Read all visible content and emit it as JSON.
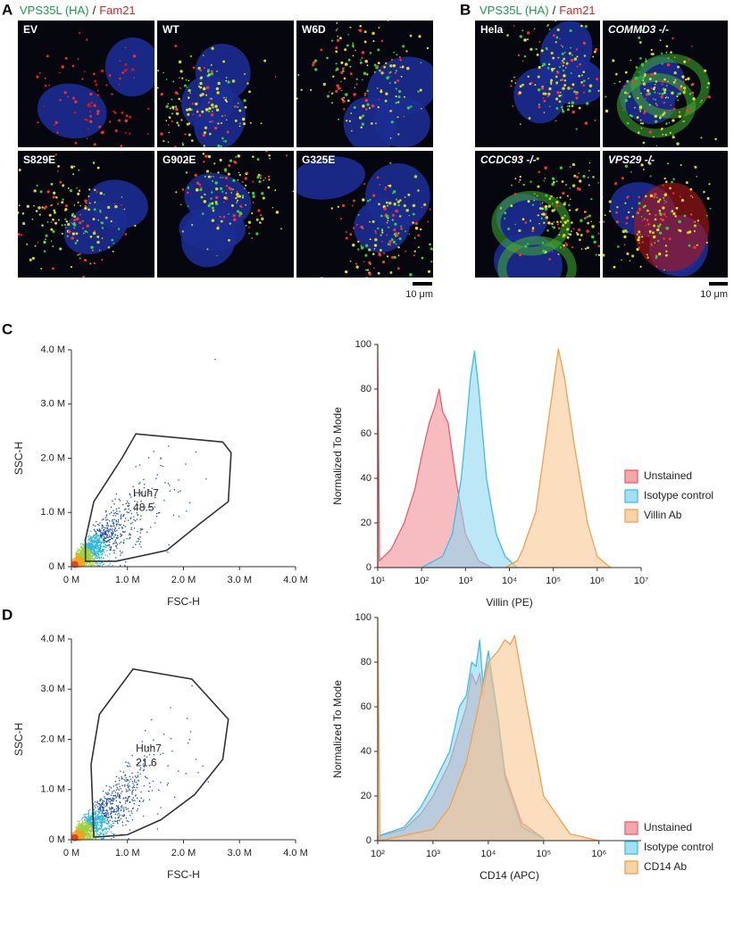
{
  "panel_a": {
    "letter": "A",
    "stain_green": "VPS35L (HA)",
    "separator": "/",
    "stain_red": "Fam21",
    "images": [
      "EV",
      "WT",
      "W6D",
      "S829E",
      "G902E",
      "G325E"
    ],
    "scale_bar": "10 μm"
  },
  "panel_b": {
    "letter": "B",
    "stain_green": "VPS35L (HA)",
    "separator": "/",
    "stain_red": "Fam21",
    "images": [
      "Hela",
      "COMMD3 -/-",
      "CCDC93 -/-",
      "VPS29 -/-"
    ],
    "scale_bar": "10 μm"
  },
  "chart_data": [
    {
      "type": "density",
      "panel": "C",
      "xlabel": "FSC-H",
      "ylabel": "SSC-H",
      "xlim": [
        0,
        4
      ],
      "ylim": [
        0,
        4
      ],
      "xticks": [
        {
          "value": 0,
          "label": "0 M"
        },
        {
          "value": 1,
          "label": "1.0 M"
        },
        {
          "value": 2,
          "label": "2.0 M"
        },
        {
          "value": 3,
          "label": "3.0 M"
        },
        {
          "value": 4,
          "label": "4.0 M"
        }
      ],
      "yticks": [
        {
          "value": 0,
          "label": "0 M"
        },
        {
          "value": 1,
          "label": "1.0 M"
        },
        {
          "value": 2,
          "label": "2.0 M"
        },
        {
          "value": 3,
          "label": "3.0 M"
        },
        {
          "value": 4,
          "label": "4.0 M"
        }
      ],
      "gate": {
        "label": "Huh7",
        "value": 48.5,
        "label_x": 1.1,
        "label_y": 1.2,
        "x": [
          0.25,
          0.25,
          0.4,
          0.9,
          1.15,
          2.7,
          2.85,
          2.8,
          2.3,
          1.7,
          0.8
        ],
        "y": [
          0.1,
          0.5,
          1.2,
          2.0,
          2.45,
          2.3,
          2.1,
          1.2,
          0.8,
          0.3,
          0.1
        ]
      }
    },
    {
      "type": "histogram",
      "xlabel": "Villin (PE)",
      "ylabel": "Normalized To Mode",
      "log_x": true,
      "xlim": [
        10,
        10000000
      ],
      "ylim": [
        0,
        100
      ],
      "xticks": [
        {
          "value": 10,
          "label": "10¹"
        },
        {
          "value": 100,
          "label": "10²"
        },
        {
          "value": 1000,
          "label": "10³"
        },
        {
          "value": 10000,
          "label": "10⁴"
        },
        {
          "value": 100000,
          "label": "10⁵"
        },
        {
          "value": 1000000,
          "label": "10⁶"
        },
        {
          "value": 10000000,
          "label": "10⁷"
        }
      ],
      "yticks": [
        0,
        20,
        40,
        60,
        80,
        100
      ],
      "series": [
        {
          "name": "Unstained",
          "color": "#e8606a",
          "fill": "#f29096",
          "x": [
            10,
            11,
            20,
            40,
            70,
            100,
            150,
            200,
            250,
            300,
            400,
            600,
            1000,
            2000,
            4000
          ],
          "values": [
            100,
            3,
            8,
            20,
            35,
            50,
            65,
            72,
            80,
            70,
            65,
            40,
            15,
            3,
            0
          ]
        },
        {
          "name": "Isotype control",
          "color": "#3fbde8",
          "fill": "#8ed7f2",
          "x": [
            100,
            300,
            500,
            800,
            1000,
            1300,
            1600,
            2000,
            3000,
            5000,
            8000,
            15000
          ],
          "values": [
            0,
            5,
            15,
            40,
            60,
            85,
            97,
            80,
            40,
            15,
            5,
            0
          ]
        },
        {
          "name": "Villin Ab",
          "color": "#f0a050",
          "fill": "#f8c892",
          "x": [
            8000,
            15000,
            20000,
            40000,
            60000,
            90000,
            130000,
            180000,
            300000,
            600000,
            1000000,
            2000000
          ],
          "values": [
            0,
            3,
            8,
            25,
            50,
            75,
            98,
            85,
            55,
            20,
            5,
            0
          ]
        }
      ]
    },
    {
      "type": "density",
      "panel": "D",
      "xlabel": "FSC-H",
      "ylabel": "SSC-H",
      "xlim": [
        0,
        4
      ],
      "ylim": [
        0,
        4
      ],
      "xticks": [
        {
          "value": 0,
          "label": "0 M"
        },
        {
          "value": 1,
          "label": "1.0 M"
        },
        {
          "value": 2,
          "label": "2.0 M"
        },
        {
          "value": 3,
          "label": "3.0 M"
        },
        {
          "value": 4,
          "label": "4.0 M"
        }
      ],
      "yticks": [
        {
          "value": 0,
          "label": "0 M"
        },
        {
          "value": 1,
          "label": "1.0 M"
        },
        {
          "value": 2,
          "label": "2.0 M"
        },
        {
          "value": 3,
          "label": "3.0 M"
        },
        {
          "value": 4,
          "label": "4.0 M"
        }
      ],
      "gate": {
        "label": "Huh7",
        "value": 21.6,
        "label_x": 1.15,
        "label_y": 1.65,
        "x": [
          0.4,
          0.35,
          0.5,
          1.1,
          2.15,
          2.8,
          2.7,
          2.2,
          1.6,
          1.0
        ],
        "y": [
          0.05,
          1.5,
          2.5,
          3.4,
          3.2,
          2.4,
          1.6,
          0.9,
          0.4,
          0.1
        ]
      }
    },
    {
      "type": "histogram",
      "xlabel": "CD14 (APC)",
      "ylabel": "Normalized To Mode",
      "log_x": true,
      "xlim": [
        100,
        5800000
      ],
      "ylim": [
        0,
        100
      ],
      "xticks": [
        {
          "value": 100,
          "label": "10²"
        },
        {
          "value": 1000,
          "label": "10³"
        },
        {
          "value": 10000,
          "label": "10⁴"
        },
        {
          "value": 100000,
          "label": "10⁵"
        },
        {
          "value": 1000000,
          "label": "10⁶"
        }
      ],
      "yticks": [
        0,
        20,
        40,
        60,
        80,
        100
      ],
      "series": [
        {
          "name": "Unstained",
          "color": "#e8606a",
          "fill": "#f29096",
          "x": [
            100,
            300,
            600,
            1000,
            2000,
            3000,
            4000,
            5000,
            6000,
            7000,
            8000,
            10000,
            15000,
            20000,
            40000,
            100000
          ],
          "values": [
            2,
            5,
            12,
            20,
            35,
            50,
            60,
            75,
            70,
            75,
            65,
            80,
            55,
            30,
            8,
            1
          ]
        },
        {
          "name": "Isotype control",
          "color": "#3fbde8",
          "fill": "#8ed7f2",
          "x": [
            100,
            300,
            600,
            1000,
            2000,
            3000,
            4000,
            5000,
            6000,
            7000,
            8000,
            10000,
            15000,
            20000,
            40000,
            100000
          ],
          "values": [
            2,
            6,
            15,
            25,
            40,
            60,
            65,
            80,
            78,
            90,
            70,
            85,
            55,
            28,
            6,
            1
          ]
        },
        {
          "name": "CD14 Ab",
          "color": "#f0a050",
          "fill": "#f8c892",
          "x": [
            100,
            110,
            1000,
            2000,
            4000,
            6000,
            8000,
            10000,
            15000,
            20000,
            25000,
            30000,
            50000,
            100000,
            300000,
            1000000
          ],
          "values": [
            100,
            0,
            5,
            15,
            35,
            55,
            70,
            80,
            85,
            90,
            88,
            92,
            60,
            20,
            3,
            0
          ]
        }
      ]
    }
  ]
}
